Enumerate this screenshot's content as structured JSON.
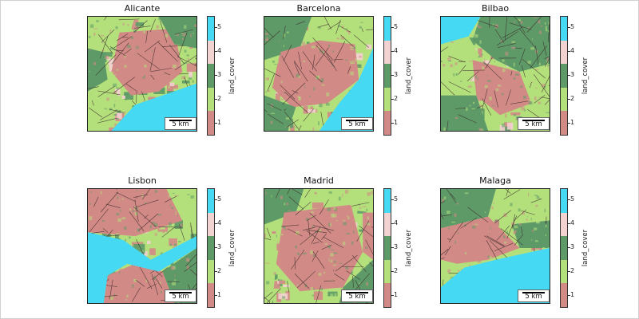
{
  "colorbar": {
    "label": "land_cover",
    "ticks": [
      "5",
      "4",
      "3",
      "2",
      "1"
    ],
    "colors": {
      "1": "#d28a86",
      "2": "#b4e07c",
      "3": "#5e9a68",
      "4": "#f3d2d2",
      "5": "#45d9f3"
    }
  },
  "road_color": "#3a2a2a",
  "scale_label": "5 km",
  "panels": [
    {
      "title": "Alicante"
    },
    {
      "title": "Barcelona"
    },
    {
      "title": "Bilbao"
    },
    {
      "title": "Lisbon"
    },
    {
      "title": "Madrid"
    },
    {
      "title": "Malaga"
    }
  ]
}
